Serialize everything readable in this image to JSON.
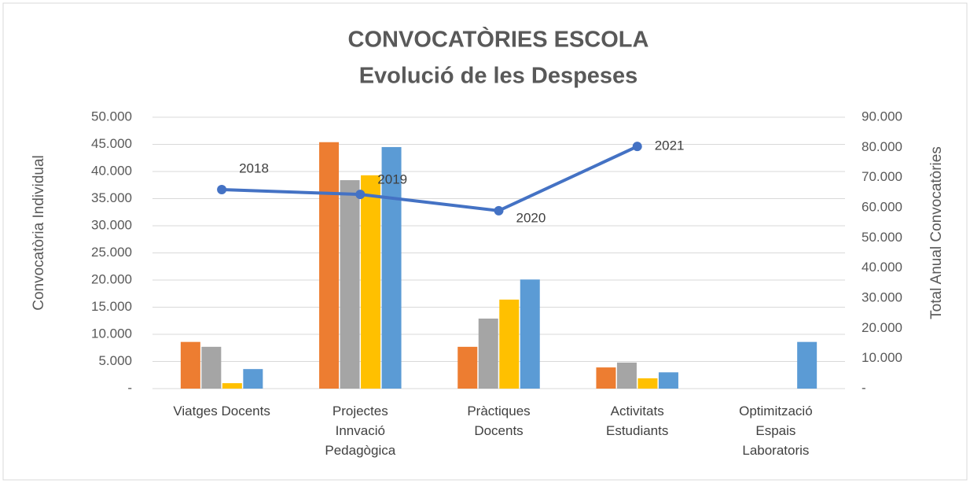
{
  "chart_data": {
    "type": "bar",
    "title": "CONVOCATÒRIES ESCOLA",
    "subtitle": "Evolució de les Despeses",
    "y_label": "Convocatòria  Individual",
    "y2_label": "Total  Anual Convocatòries",
    "categories": [
      "Viatges Docents",
      "Projectes\nInnvació\nPedagògica",
      "Pràctiques\nDocents",
      "Activitats\nEstudiants",
      "Optimització\nEspais\nLaboratoris"
    ],
    "series": [
      {
        "color": "#ed7d31",
        "values": [
          8600,
          45400,
          7700,
          3900,
          0
        ]
      },
      {
        "color": "#a5a5a5",
        "values": [
          7700,
          38400,
          12900,
          4800,
          0
        ]
      },
      {
        "color": "#ffc000",
        "values": [
          1000,
          39300,
          16400,
          1900,
          0
        ]
      },
      {
        "color": "#5b9bd5",
        "values": [
          3600,
          44500,
          20100,
          3000,
          8600
        ]
      },
      {
        "type": "line",
        "axis": "y2",
        "color": "#4472c4",
        "values": [
          66000,
          64400,
          59000,
          80300,
          null
        ],
        "point_labels": [
          "2018",
          "2019",
          "2020",
          "2021",
          null
        ]
      }
    ],
    "ylim": [
      0,
      50000
    ],
    "yticks": [
      {
        "value": 0,
        "label": "-"
      },
      {
        "value": 5000,
        "label": "5.000"
      },
      {
        "value": 10000,
        "label": "10.000"
      },
      {
        "value": 15000,
        "label": "15.000"
      },
      {
        "value": 20000,
        "label": "20.000"
      },
      {
        "value": 25000,
        "label": "25.000"
      },
      {
        "value": 30000,
        "label": "30.000"
      },
      {
        "value": 35000,
        "label": "35.000"
      },
      {
        "value": 40000,
        "label": "40.000"
      },
      {
        "value": 45000,
        "label": "45.000"
      },
      {
        "value": 50000,
        "label": "50.000"
      }
    ],
    "y2lim": [
      0,
      90000
    ],
    "y2ticks": [
      {
        "value": 0,
        "label": "-"
      },
      {
        "value": 10000,
        "label": "10.000"
      },
      {
        "value": 20000,
        "label": "20.000"
      },
      {
        "value": 30000,
        "label": "30.000"
      },
      {
        "value": 40000,
        "label": "40.000"
      },
      {
        "value": 50000,
        "label": "50.000"
      },
      {
        "value": 60000,
        "label": "60.000"
      },
      {
        "value": 70000,
        "label": "70.000"
      },
      {
        "value": 80000,
        "label": "80.000"
      },
      {
        "value": 90000,
        "label": "90.000"
      }
    ],
    "grid": true
  }
}
